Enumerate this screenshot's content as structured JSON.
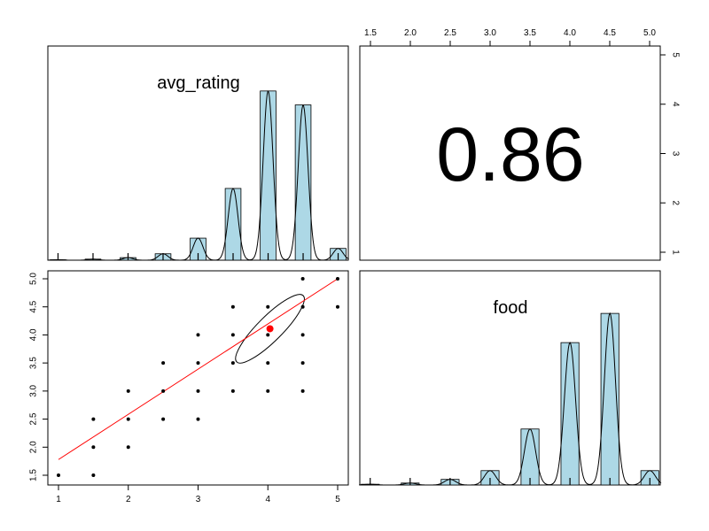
{
  "chart_data": {
    "type": "scatter",
    "variables": [
      "avg_rating",
      "food"
    ],
    "correlation": "0.86",
    "avg_rating_ticks": [
      "1",
      "2",
      "3",
      "4",
      "5"
    ],
    "food_ticks": [
      "1.5",
      "2.0",
      "2.5",
      "3.0",
      "3.5",
      "4.0",
      "4.5",
      "5.0"
    ],
    "top_axis_ticks": [
      "1.5",
      "2.0",
      "2.5",
      "3.0",
      "3.5",
      "4.0",
      "4.5",
      "5.0"
    ],
    "right_axis_ticks": [
      "1",
      "2",
      "3",
      "4",
      "5"
    ],
    "avg_rating_hist": {
      "bins": [
        1.0,
        1.5,
        2.0,
        2.5,
        3.0,
        3.5,
        4.0,
        4.5,
        5.0
      ],
      "heights": [
        0.2,
        0.5,
        1.2,
        3.0,
        10.3,
        33.5,
        79.0,
        72.5,
        5.5
      ],
      "max": 100
    },
    "food_hist": {
      "bins": [
        1.5,
        2.0,
        2.5,
        3.0,
        3.5,
        4.0,
        4.5,
        5.0
      ],
      "heights": [
        0.3,
        0.8,
        2.3,
        5.9,
        23.0,
        58.5,
        70.5,
        5.9
      ],
      "max": 88
    },
    "scatter": {
      "xlim": [
        1,
        5
      ],
      "ylim": [
        1.5,
        5
      ],
      "points": [
        [
          1,
          1.5
        ],
        [
          1.5,
          1.5
        ],
        [
          1.5,
          2.0
        ],
        [
          1.5,
          2.5
        ],
        [
          2,
          2.0
        ],
        [
          2,
          2.5
        ],
        [
          2,
          3.0
        ],
        [
          2.5,
          2.5
        ],
        [
          2.5,
          3.0
        ],
        [
          2.5,
          3.5
        ],
        [
          3,
          2.5
        ],
        [
          3,
          3.0
        ],
        [
          3,
          3.5
        ],
        [
          3,
          4.0
        ],
        [
          3.5,
          3.0
        ],
        [
          3.5,
          3.5
        ],
        [
          3.5,
          4.0
        ],
        [
          3.5,
          4.5
        ],
        [
          4,
          3.0
        ],
        [
          4,
          3.5
        ],
        [
          4,
          4.0
        ],
        [
          4,
          4.5
        ],
        [
          4.5,
          3.0
        ],
        [
          4.5,
          3.5
        ],
        [
          4.5,
          4.0
        ],
        [
          4.5,
          4.5
        ],
        [
          4.5,
          5.0
        ],
        [
          5,
          4.5
        ],
        [
          5,
          5.0
        ]
      ],
      "mean": [
        4.03,
        4.11
      ],
      "regression": [
        [
          1,
          1.78
        ],
        [
          5,
          5.0
        ]
      ],
      "colors": {
        "points": "#000000",
        "mean": "#ff0000",
        "fit": "#ff0000",
        "ellipse": "#000000"
      }
    },
    "colors": {
      "bars": "#add8e6",
      "density": "#000000"
    }
  }
}
